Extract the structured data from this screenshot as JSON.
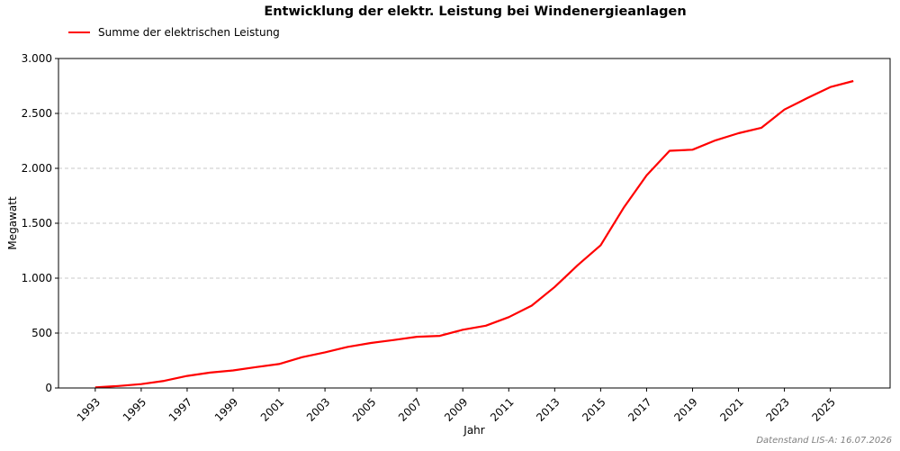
{
  "chart_data": {
    "type": "line",
    "title": "Entwicklung der elektr. Leistung bei Windenergieanlagen",
    "xlabel": "Jahr",
    "ylabel": "Megawatt",
    "ylim": [
      0,
      3000
    ],
    "xlim": [
      1991.4,
      2027.6
    ],
    "xticks": [
      "1993",
      "1995",
      "1997",
      "1999",
      "2001",
      "2003",
      "2005",
      "2007",
      "2009",
      "2011",
      "2013",
      "2015",
      "2017",
      "2019",
      "2021",
      "2023",
      "2025"
    ],
    "yticks": [
      0,
      500,
      1000,
      1500,
      2000,
      2500,
      3000
    ],
    "ytick_labels": [
      "0",
      "500",
      "1.000",
      "1.500",
      "2.000",
      "2.500",
      "3.000"
    ],
    "grid": "y-dashed",
    "legend_placement": "top-left",
    "series": [
      {
        "name": "Summe der elektrischen Leistung",
        "color": "#ff0000",
        "x": [
          1993,
          1994,
          1995,
          1996,
          1997,
          1998,
          1999,
          2000,
          2001,
          2002,
          2003,
          2004,
          2005,
          2006,
          2007,
          2008,
          2009,
          2010,
          2011,
          2012,
          2013,
          2014,
          2015,
          2016,
          2017,
          2018,
          2019,
          2020,
          2021,
          2022,
          2023,
          2024,
          2025,
          2026
        ],
        "y": [
          5,
          18,
          35,
          65,
          110,
          140,
          160,
          190,
          218,
          280,
          325,
          375,
          410,
          437,
          466,
          475,
          530,
          567,
          645,
          750,
          920,
          1118,
          1300,
          1640,
          1935,
          2160,
          2170,
          2255,
          2320,
          2370,
          2535,
          2640,
          2740,
          2795
        ]
      }
    ]
  },
  "footer": {
    "source": "Datenstand LIS-A: 16.07.2026"
  }
}
